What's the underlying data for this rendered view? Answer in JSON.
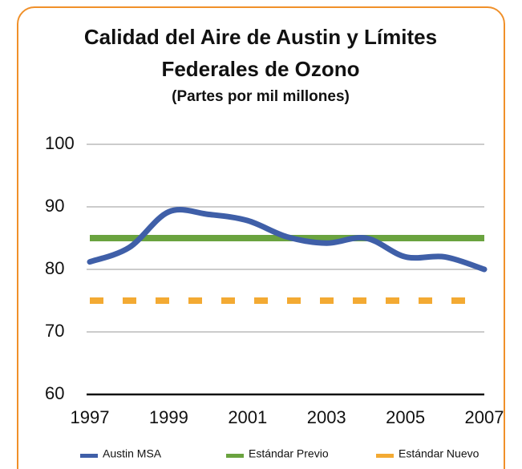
{
  "chart_data": {
    "type": "line",
    "title": "Calidad del Aire de Austin y Límites Federales de Ozono",
    "subtitle": "(Partes por mil millones)",
    "x": [
      1997,
      1998,
      1999,
      2000,
      2001,
      2002,
      2003,
      2004,
      2005,
      2006,
      2007
    ],
    "series": [
      {
        "name": "Austin MSA",
        "color": "#3f5fa8",
        "style": "smooth",
        "values": [
          81.2,
          83.5,
          89.2,
          88.8,
          87.8,
          85.2,
          84.2,
          85,
          82,
          82,
          80
        ]
      },
      {
        "name": "Estándar Previo",
        "color": "#6aa33f",
        "style": "solid",
        "values": [
          85,
          85,
          85,
          85,
          85,
          85,
          85,
          85,
          85,
          85,
          85
        ]
      },
      {
        "name": "Estándar Nuevo",
        "color": "#f3aa33",
        "style": "dashed",
        "values": [
          75,
          75,
          75,
          75,
          75,
          75,
          75,
          75,
          75,
          75,
          75
        ]
      }
    ],
    "xlim": [
      1997,
      2007
    ],
    "xticks": [
      1997,
      1999,
      2001,
      2003,
      2005,
      2007
    ],
    "ylim": [
      60,
      100
    ],
    "yticks": [
      60,
      70,
      80,
      90,
      100
    ],
    "grid": true,
    "legend": "bottom"
  }
}
